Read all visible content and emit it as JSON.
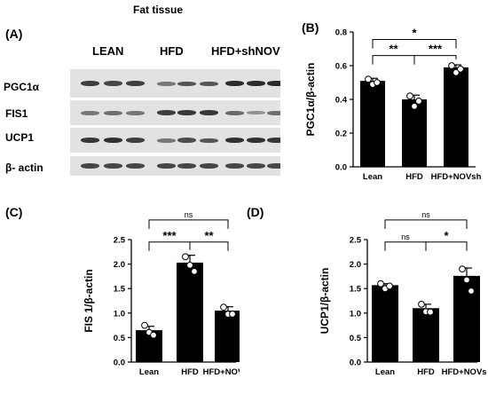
{
  "figure": {
    "section_title": "Fat tissue",
    "panel_A_label": "(A)",
    "lane_groups": [
      "LEAN",
      "HFD",
      "HFD+shNOV"
    ],
    "blot_rows": [
      {
        "label": "PGC1α",
        "intensity": [
          0.85,
          0.8,
          0.85,
          0.45,
          0.7,
          0.7,
          1.0,
          1.0,
          1.0
        ]
      },
      {
        "label": "FIS1",
        "intensity": [
          0.45,
          0.5,
          0.45,
          0.85,
          0.9,
          0.9,
          0.55,
          0.25,
          0.5
        ]
      },
      {
        "label": "UCP1",
        "intensity": [
          0.9,
          0.95,
          0.85,
          0.45,
          0.75,
          0.7,
          0.95,
          0.95,
          0.9
        ]
      },
      {
        "label": "β- actin",
        "intensity": [
          0.8,
          0.8,
          0.8,
          0.8,
          0.8,
          0.8,
          0.8,
          0.8,
          0.8
        ]
      }
    ]
  },
  "chart_data": [
    {
      "panel": "(B)",
      "type": "bar",
      "title": "",
      "xlabel": "",
      "ylabel": "PGC1α/β-actin",
      "categories": [
        "Lean",
        "HFD",
        "HFD+NOVsh"
      ],
      "values": [
        0.51,
        0.4,
        0.59
      ],
      "errors": [
        0.015,
        0.025,
        0.015
      ],
      "points": [
        [
          0.52,
          0.51,
          0.5
        ],
        [
          0.42,
          0.38,
          0.39
        ],
        [
          0.6,
          0.58,
          0.58
        ]
      ],
      "ylim": [
        0,
        0.8
      ],
      "yticks": [
        0.0,
        0.2,
        0.4,
        0.6,
        0.8
      ],
      "ytick_labels": [
        "0.0",
        "0.2",
        "0.4",
        "0.6",
        "0.8"
      ],
      "significance": [
        {
          "from": 0,
          "to": 2,
          "label": "*",
          "y": 0.755
        },
        {
          "from": 0,
          "to": 1,
          "label": "**",
          "y": 0.66
        },
        {
          "from": 1,
          "to": 2,
          "label": "***",
          "y": 0.66
        }
      ]
    },
    {
      "panel": "(C)",
      "type": "bar",
      "title": "",
      "xlabel": "",
      "ylabel": "FIS 1/β-actin",
      "categories": [
        "Lean",
        "HFD",
        "HFD+NOVsh"
      ],
      "values": [
        0.65,
        2.03,
        1.05
      ],
      "errors": [
        0.08,
        0.15,
        0.08
      ],
      "points": [
        [
          0.75,
          0.68,
          0.55
        ],
        [
          2.15,
          2.05,
          1.85
        ],
        [
          1.12,
          1.05,
          0.98
        ]
      ],
      "ylim": [
        0,
        2.5
      ],
      "yticks": [
        0.0,
        0.5,
        1.0,
        1.5,
        2.0,
        2.5
      ],
      "ytick_labels": [
        "0.0",
        "0.5",
        "1.0",
        "1.5",
        "2.0",
        "2.5"
      ],
      "significance": [
        {
          "from": 0,
          "to": 2,
          "label": "ns",
          "y": 2.9
        },
        {
          "from": 0,
          "to": 1,
          "label": "***",
          "y": 2.45
        },
        {
          "from": 1,
          "to": 2,
          "label": "**",
          "y": 2.45
        }
      ]
    },
    {
      "panel": "(D)",
      "type": "bar",
      "title": "",
      "xlabel": "",
      "ylabel": "UCP1/β-actin",
      "categories": [
        "Lean",
        "HFD",
        "HFD+NOVsh"
      ],
      "values": [
        1.57,
        1.1,
        1.76
      ],
      "errors": [
        0.03,
        0.08,
        0.16
      ],
      "points": [
        [
          1.6,
          1.57,
          1.55
        ],
        [
          1.18,
          1.1,
          1.02
        ],
        [
          1.9,
          1.75,
          1.45
        ]
      ],
      "ylim": [
        0,
        2.5
      ],
      "yticks": [
        0.0,
        0.5,
        1.0,
        1.5,
        2.0,
        2.5
      ],
      "ytick_labels": [
        "0.0",
        "0.5",
        "1.0",
        "1.5",
        "2.0",
        "2.5"
      ],
      "significance": [
        {
          "from": 0,
          "to": 2,
          "label": "ns",
          "y": 2.9
        },
        {
          "from": 0,
          "to": 1,
          "label": "ns",
          "y": 2.45
        },
        {
          "from": 1,
          "to": 2,
          "label": "*",
          "y": 2.45
        }
      ]
    }
  ]
}
